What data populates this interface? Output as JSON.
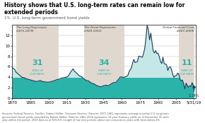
{
  "chart_data": {
    "type": "area",
    "title": "History shows that U.S. long-term rates can remain low for extended periods",
    "subtitle": "1%  U.S. long-term government bond yields",
    "source": "Sources: Federal Reserve, FactSet, Robert Shiller, Thomson Reuters. Data for 1871-1961 represents average monthly U.S. long-term\ngovernment bond yields compiled by Robert Shiller. Data for 1962-2018 represents 10-year Treasury yields as of December 31 each\nyear within the period. 2019 data as of 5/31/19. Length of low rate periods above are consecutive years with rates below 4%.",
    "x": [
      1870,
      1872,
      1873,
      1875,
      1878,
      1880,
      1882,
      1885,
      1888,
      1890,
      1893,
      1895,
      1898,
      1900,
      1902,
      1905,
      1907,
      1908,
      1910,
      1912,
      1914,
      1916,
      1918,
      1920,
      1921,
      1923,
      1925,
      1927,
      1929,
      1931,
      1933,
      1935,
      1937,
      1939,
      1941,
      1943,
      1945,
      1947,
      1949,
      1951,
      1953,
      1955,
      1957,
      1959,
      1961,
      1962,
      1963,
      1965,
      1966,
      1968,
      1969,
      1970,
      1971,
      1973,
      1974,
      1975,
      1977,
      1978,
      1979,
      1980,
      1981,
      1982,
      1983,
      1984,
      1985,
      1986,
      1987,
      1988,
      1989,
      1990,
      1991,
      1992,
      1993,
      1994,
      1995,
      1996,
      1997,
      1998,
      1999,
      2000,
      2001,
      2002,
      2003,
      2004,
      2005,
      2006,
      2007,
      2008,
      2009,
      2010,
      2011,
      2012,
      2013,
      2014,
      2015,
      2016,
      2017,
      2018,
      2019.5
    ],
    "values": [
      5.8,
      5.5,
      5.0,
      4.6,
      4.0,
      3.9,
      3.7,
      3.5,
      3.3,
      3.2,
      3.4,
      3.2,
      3.1,
      3.1,
      3.2,
      3.4,
      3.6,
      3.6,
      3.8,
      3.9,
      4.0,
      4.2,
      5.0,
      5.6,
      5.2,
      4.8,
      4.3,
      4.1,
      3.7,
      3.4,
      3.3,
      2.9,
      2.8,
      2.5,
      2.3,
      2.2,
      2.4,
      2.5,
      2.4,
      2.7,
      3.0,
      3.0,
      3.5,
      4.1,
      4.0,
      4.0,
      4.1,
      4.3,
      5.0,
      5.8,
      6.7,
      7.4,
      6.8,
      7.0,
      8.0,
      8.0,
      7.8,
      8.5,
      9.5,
      11.5,
      13.9,
      13.0,
      11.1,
      12.4,
      10.6,
      9.0,
      8.6,
      9.1,
      8.5,
      8.6,
      7.9,
      7.0,
      6.6,
      7.8,
      6.6,
      6.5,
      6.4,
      5.3,
      5.9,
      6.0,
      5.5,
      4.6,
      4.0,
      4.3,
      4.3,
      4.8,
      4.6,
      3.7,
      3.3,
      3.5,
      2.8,
      1.8,
      2.9,
      2.5,
      2.1,
      2.4,
      2.3,
      3.0,
      2.14
    ],
    "color": "#1a3a5c",
    "low_rate_threshold": 4.0,
    "colors": [
      "#2ab3a8",
      "#c5e8e6"
    ],
    "regions": [
      {
        "x0": 1873,
        "x1": 1908,
        "label": "The Long Depression",
        "period": "(1873-1879)",
        "years": "31",
        "note": "YEARS OF\nLOW RATES",
        "color": "#e0d8cf"
      },
      {
        "x0": 1929,
        "x1": 1962,
        "label": "The Great Depression",
        "period": "(1929-1933)",
        "years": "34",
        "note": "YEARS OF\nLOW RATES",
        "color": "#e0d8cf"
      },
      {
        "x0": 2007,
        "x1": 2020,
        "label": "Global Financial Crisis",
        "period": "(2007-2009)",
        "years": "11",
        "note": "YEARS OF\nLOW RATES",
        "color": "#e0d8cf"
      }
    ],
    "annotations": [
      {
        "x": 2019.5,
        "y": 2.14,
        "text": "2.14%",
        "marker": "o"
      }
    ],
    "xlim": [
      1870,
      2021
    ],
    "ylim": [
      0,
      14
    ],
    "xticks": [
      1870,
      1885,
      1900,
      1915,
      1930,
      1945,
      1960,
      1975,
      1990,
      2005,
      {
        "value": 2019.5,
        "label": "5/31/19"
      }
    ],
    "yticks": [
      0,
      2,
      4,
      6,
      8,
      10,
      12
    ],
    "grid": "y"
  }
}
